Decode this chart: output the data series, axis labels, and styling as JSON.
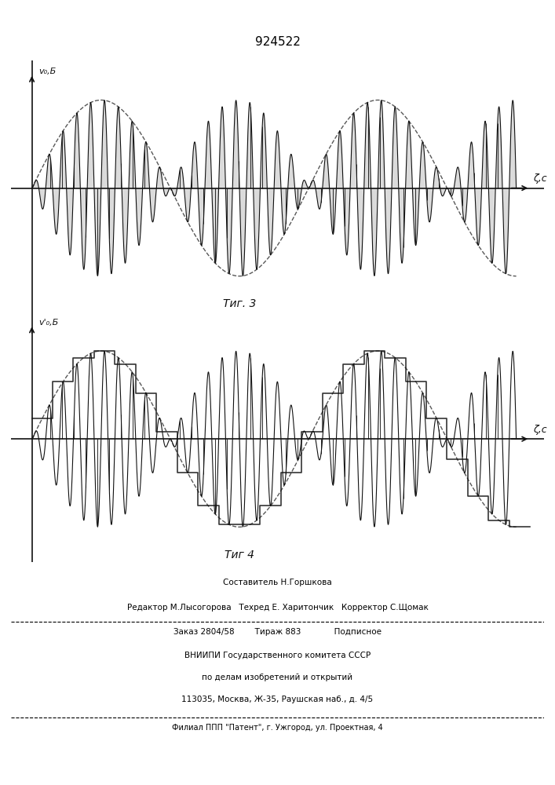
{
  "title": "924522",
  "fig3_label": "Τиг. 3",
  "fig4_label": "Τиг 4",
  "ylabel1": "v₀,Б",
  "ylabel2": "v'₀,Б",
  "xlabel": "ζ,c",
  "bg_color": "#f5f5f0",
  "line_color": "#111111",
  "footer_lines": [
    "Составитель Н.Горшкова",
    "Редактор М.Лысогорова   Техред Е. Харитончик   Корректор С.Щомак",
    "Заказ 2804/58        Тираж 883             Подписное",
    "ВНИИПИ Государственного комитета СССР",
    "по делам изобретений и открытий",
    "113035, Москва, Ж-35, Раушская наб., д. 4/5",
    "Филиал ППП \"Патент\", г. Ужгород, ул. Проектная, 4"
  ]
}
